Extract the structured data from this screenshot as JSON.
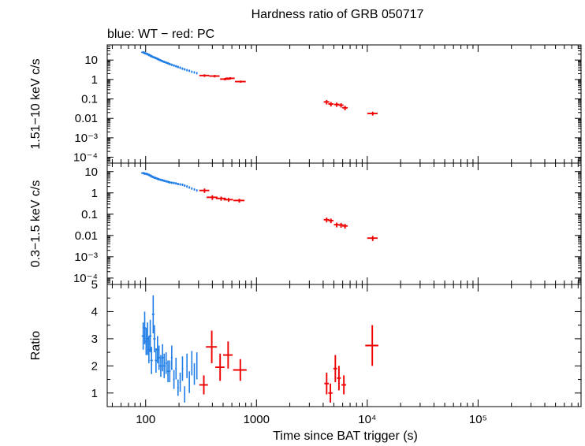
{
  "chart_data": {
    "type": "scatter",
    "title": "Hardness ratio of GRB 050717",
    "subtitle": "blue: WT − red: PC",
    "xlabel": "Time since BAT trigger (s)",
    "xscale": "log",
    "xlim": [
      45,
      850000
    ],
    "xticklabels": [
      "100",
      "1000",
      "10⁴",
      "10⁵"
    ],
    "colors": {
      "WT": "#1e7de6",
      "PC": "#ee0000"
    },
    "panels": [
      {
        "ylabel": "1.51−10 keV c/s",
        "yscale": "log",
        "ylim": [
          5e-05,
          60
        ],
        "yticklabels": [
          "10",
          "1",
          "0.1",
          "0.01",
          "10⁻³",
          "10⁻⁴"
        ],
        "series": [
          {
            "mode": "WT",
            "points": [
              [
                95,
                25,
                4,
                0
              ],
              [
                98,
                23,
                4,
                0
              ],
              [
                101,
                21.5,
                4,
                0
              ],
              [
                104,
                20,
                4,
                0
              ],
              [
                107,
                18.5,
                4,
                0
              ],
              [
                110,
                17,
                4,
                0
              ],
              [
                113,
                15.5,
                4,
                0
              ],
              [
                116,
                14.5,
                4,
                0
              ],
              [
                120,
                13.5,
                4,
                0
              ],
              [
                124,
                12.5,
                4,
                0
              ],
              [
                128,
                11.5,
                4,
                0
              ],
              [
                132,
                10.5,
                4,
                0
              ],
              [
                137,
                9.5,
                4,
                0
              ],
              [
                142,
                8.7,
                4,
                0
              ],
              [
                147,
                8,
                4,
                0
              ],
              [
                153,
                7.4,
                4,
                0
              ],
              [
                159,
                6.8,
                4,
                0
              ],
              [
                165,
                6.2,
                4,
                0
              ],
              [
                172,
                5.7,
                4,
                0
              ],
              [
                180,
                5.2,
                4,
                0
              ],
              [
                188,
                4.8,
                4,
                0
              ],
              [
                196,
                4.4,
                4,
                0
              ],
              [
                205,
                4,
                4,
                0
              ],
              [
                215,
                3.6,
                4,
                0
              ],
              [
                225,
                3.3,
                4,
                0
              ],
              [
                236,
                3.0,
                4,
                0
              ],
              [
                248,
                2.8,
                4,
                0
              ],
              [
                261,
                2.5,
                4,
                0
              ],
              [
                275,
                2.3,
                4,
                0
              ],
              [
                290,
                2.1,
                4,
                0
              ]
            ]
          },
          {
            "mode": "PC",
            "points": [
              [
                340,
                1.6,
                35,
                0.25
              ],
              [
                420,
                1.5,
                45,
                0.22
              ],
              [
                520,
                1.05,
                50,
                0.15
              ],
              [
                580,
                1.15,
                55,
                0.16
              ],
              [
                720,
                0.78,
                80,
                0.1
              ],
              [
                4300,
                0.07,
                250,
                0.018
              ],
              [
                4700,
                0.055,
                250,
                0.014
              ],
              [
                5300,
                0.052,
                300,
                0.013
              ],
              [
                5800,
                0.048,
                300,
                0.012
              ],
              [
                6300,
                0.035,
                350,
                0.009
              ],
              [
                11200,
                0.018,
                1200,
                0.004
              ]
            ]
          }
        ]
      },
      {
        "ylabel": "0.3−1.5 keV c/s",
        "yscale": "log",
        "ylim": [
          5e-05,
          25
        ],
        "yticklabels": [
          "10",
          "1",
          "0.1",
          "0.01",
          "10⁻³",
          "10⁻⁴"
        ],
        "series": [
          {
            "mode": "WT",
            "points": [
              [
                95,
                8.5,
                4,
                0
              ],
              [
                98,
                8.0,
                4,
                0
              ],
              [
                101,
                7.8,
                4,
                0
              ],
              [
                104,
                7.5,
                4,
                0
              ],
              [
                107,
                7.0,
                4,
                0
              ],
              [
                110,
                6.5,
                4,
                0
              ],
              [
                113,
                6.0,
                4,
                0
              ],
              [
                116,
                5.6,
                4,
                0
              ],
              [
                120,
                5.2,
                4,
                0
              ],
              [
                124,
                4.9,
                4,
                0
              ],
              [
                128,
                4.6,
                4,
                0
              ],
              [
                132,
                4.3,
                4,
                0
              ],
              [
                137,
                4.1,
                4,
                0
              ],
              [
                142,
                3.9,
                4,
                0
              ],
              [
                147,
                3.7,
                4,
                0
              ],
              [
                153,
                3.5,
                4,
                0
              ],
              [
                159,
                3.3,
                4,
                0
              ],
              [
                165,
                3.1,
                4,
                0
              ],
              [
                172,
                3.0,
                4,
                0
              ],
              [
                180,
                2.9,
                4,
                0
              ],
              [
                188,
                2.8,
                4,
                0
              ],
              [
                196,
                2.6,
                4,
                0
              ],
              [
                205,
                2.5,
                4,
                0
              ],
              [
                215,
                2.4,
                4,
                0
              ],
              [
                225,
                2.2,
                4,
                0
              ],
              [
                236,
                2.0,
                4,
                0
              ],
              [
                248,
                1.8,
                4,
                0
              ],
              [
                261,
                1.6,
                4,
                0
              ],
              [
                275,
                1.45,
                4,
                0
              ],
              [
                290,
                1.3,
                4,
                0
              ]
            ]
          },
          {
            "mode": "PC",
            "points": [
              [
                340,
                1.3,
                35,
                0.3
              ],
              [
                400,
                0.62,
                45,
                0.15
              ],
              [
                480,
                0.55,
                50,
                0.12
              ],
              [
                560,
                0.48,
                55,
                0.1
              ],
              [
                700,
                0.44,
                80,
                0.09
              ],
              [
                4300,
                0.055,
                250,
                0.014
              ],
              [
                4700,
                0.05,
                250,
                0.012
              ],
              [
                5300,
                0.032,
                300,
                0.008
              ],
              [
                5800,
                0.031,
                300,
                0.008
              ],
              [
                6300,
                0.028,
                350,
                0.007
              ],
              [
                11200,
                0.0075,
                1200,
                0.002
              ]
            ]
          }
        ]
      },
      {
        "ylabel": "Ratio",
        "yscale": "linear",
        "ylim": [
          0.5,
          5
        ],
        "yticklabels": [
          "1",
          "2",
          "3",
          "4",
          "5"
        ],
        "series": [
          {
            "mode": "WT",
            "points": [
              [
                95,
                3.1,
                3,
                0.5
              ],
              [
                98,
                3.4,
                3,
                0.6
              ],
              [
                101,
                2.9,
                3,
                0.5
              ],
              [
                104,
                3.0,
                3,
                0.6
              ],
              [
                107,
                2.6,
                3,
                0.5
              ],
              [
                110,
                3.1,
                3,
                0.6
              ],
              [
                113,
                2.2,
                3,
                0.5
              ],
              [
                117,
                3.9,
                3,
                0.7
              ],
              [
                120,
                3.0,
                3,
                0.5
              ],
              [
                124,
                2.2,
                3,
                0.45
              ],
              [
                128,
                2.6,
                3,
                0.5
              ],
              [
                132,
                2.3,
                3,
                0.45
              ],
              [
                137,
                2.0,
                3,
                0.4
              ],
              [
                142,
                2.3,
                3,
                0.5
              ],
              [
                147,
                2.0,
                3,
                0.45
              ],
              [
                153,
                2.1,
                3,
                0.4
              ],
              [
                159,
                1.8,
                3,
                0.4
              ],
              [
                165,
                1.8,
                3,
                0.4
              ],
              [
                172,
                2.3,
                3,
                0.45
              ],
              [
                180,
                1.5,
                3,
                0.35
              ],
              [
                188,
                1.9,
                3,
                0.4
              ],
              [
                196,
                1.2,
                3,
                0.3
              ],
              [
                205,
                1.4,
                3,
                0.35
              ],
              [
                215,
                1.9,
                3,
                0.45
              ],
              [
                225,
                0.95,
                3,
                0.3
              ],
              [
                236,
                2.0,
                3,
                0.45
              ],
              [
                248,
                1.4,
                3,
                0.4
              ],
              [
                261,
                2.1,
                3,
                0.45
              ],
              [
                275,
                1.7,
                3,
                0.4
              ],
              [
                290,
                2.0,
                3,
                0.5
              ]
            ]
          },
          {
            "mode": "PC",
            "points": [
              [
                335,
                1.3,
                30,
                0.35
              ],
              [
                395,
                2.7,
                45,
                0.6
              ],
              [
                470,
                1.95,
                45,
                0.5
              ],
              [
                555,
                2.4,
                55,
                0.5
              ],
              [
                715,
                1.85,
                100,
                0.4
              ],
              [
                4300,
                1.35,
                200,
                0.4
              ],
              [
                4650,
                1.0,
                200,
                0.35
              ],
              [
                5150,
                1.9,
                200,
                0.5
              ],
              [
                5550,
                1.55,
                220,
                0.45
              ],
              [
                6150,
                1.3,
                300,
                0.35
              ],
              [
                11100,
                2.75,
                1500,
                0.75
              ]
            ]
          }
        ]
      }
    ]
  }
}
